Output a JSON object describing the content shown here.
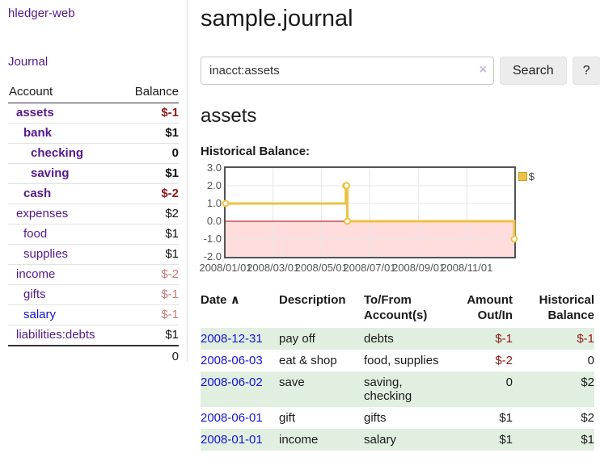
{
  "colors": {
    "link_purple": "#551a8b",
    "link_blue": "#1414d6",
    "negative_strong": "#941616",
    "negative_soft": "#c47c7c",
    "stripe_green": "#e1efe1",
    "chart_gold": "#edc240",
    "chart_pink": "#ffdddd",
    "chart_zero_line": "#aa0000"
  },
  "app": {
    "title": "hledger-web",
    "journal_link": "Journal"
  },
  "sidebar": {
    "headers": {
      "account": "Account",
      "balance": "Balance"
    },
    "accounts": [
      {
        "name": "assets",
        "balance": "$-1",
        "depth": 1,
        "bold": true,
        "balance_style": "negative-strong"
      },
      {
        "name": "bank",
        "balance": "$1",
        "depth": 2,
        "bold": true,
        "balance_style": "normal"
      },
      {
        "name": "checking",
        "balance": "0",
        "depth": 3,
        "bold": true,
        "balance_style": "normal"
      },
      {
        "name": "saving",
        "balance": "$1",
        "depth": 3,
        "bold": true,
        "balance_style": "normal"
      },
      {
        "name": "cash",
        "balance": "$-2",
        "depth": 2,
        "bold": true,
        "balance_style": "negative-strong"
      },
      {
        "name": "expenses",
        "balance": "$2",
        "depth": 1,
        "bold": false,
        "balance_style": "normal"
      },
      {
        "name": "food",
        "balance": "$1",
        "depth": 2,
        "bold": false,
        "balance_style": "normal"
      },
      {
        "name": "supplies",
        "balance": "$1",
        "depth": 2,
        "bold": false,
        "balance_style": "normal"
      },
      {
        "name": "income",
        "balance": "$-2",
        "depth": 1,
        "bold": false,
        "balance_style": "negative-soft"
      },
      {
        "name": "gifts",
        "balance": "$-1",
        "depth": 2,
        "bold": false,
        "balance_style": "negative-soft"
      },
      {
        "name": "salary",
        "balance": "$-1",
        "depth": 2,
        "bold": false,
        "balance_style": "negative-soft",
        "unvisited": true
      },
      {
        "name": "liabilities:debts",
        "balance": "$1",
        "depth": 1,
        "bold": false,
        "balance_style": "normal"
      }
    ],
    "total": "0"
  },
  "header": {
    "title": "sample.journal"
  },
  "search": {
    "value": "inacct:assets",
    "clear_icon": "×",
    "button_label": "Search",
    "help_label": "?"
  },
  "account_page": {
    "heading": "assets",
    "chart_label": "Historical Balance:"
  },
  "chart_data": {
    "type": "line",
    "step": true,
    "title": "Historical Balance:",
    "legend": "$",
    "legend_position": "top-right",
    "grid": true,
    "x_domain": [
      "2008-01-01",
      "2008-12-31"
    ],
    "ylim": [
      -2,
      3
    ],
    "y_ticks": [
      3.0,
      2.0,
      1.0,
      0.0,
      -1.0,
      -2.0
    ],
    "x_ticks": [
      "2008/01/01",
      "2008/03/01",
      "2008/05/01",
      "2008/07/01",
      "2008/09/01",
      "2008/11/01"
    ],
    "series": [
      {
        "name": "$",
        "color": "#edc240",
        "points": [
          [
            "2008-01-01",
            1
          ],
          [
            "2008-06-01",
            2
          ],
          [
            "2008-06-02",
            2
          ],
          [
            "2008-06-03",
            0
          ],
          [
            "2008-12-31",
            -1
          ]
        ]
      }
    ],
    "negative_region_color": "#ffdddd",
    "zero_line_color": "#aa0000"
  },
  "register": {
    "sort_indicator": "∧",
    "columns": [
      "Date",
      "Description",
      "To/From Account(s)",
      "Amount Out/In",
      "Historical Balance"
    ],
    "rows": [
      {
        "date": "2008-12-31",
        "description": "pay off",
        "accounts": "debts",
        "amount": "$-1",
        "amount_negative": true,
        "balance": "$-1",
        "balance_negative": true
      },
      {
        "date": "2008-06-03",
        "description": "eat & shop",
        "accounts": "food, supplies",
        "amount": "$-2",
        "amount_negative": true,
        "balance": "0",
        "balance_negative": false
      },
      {
        "date": "2008-06-02",
        "description": "save",
        "accounts": "saving, checking",
        "amount": "0",
        "amount_negative": false,
        "balance": "$2",
        "balance_negative": false
      },
      {
        "date": "2008-06-01",
        "description": "gift",
        "accounts": "gifts",
        "amount": "$1",
        "amount_negative": false,
        "balance": "$2",
        "balance_negative": false
      },
      {
        "date": "2008-01-01",
        "description": "income",
        "accounts": "salary",
        "amount": "$1",
        "amount_negative": false,
        "balance": "$1",
        "balance_negative": false
      }
    ]
  }
}
